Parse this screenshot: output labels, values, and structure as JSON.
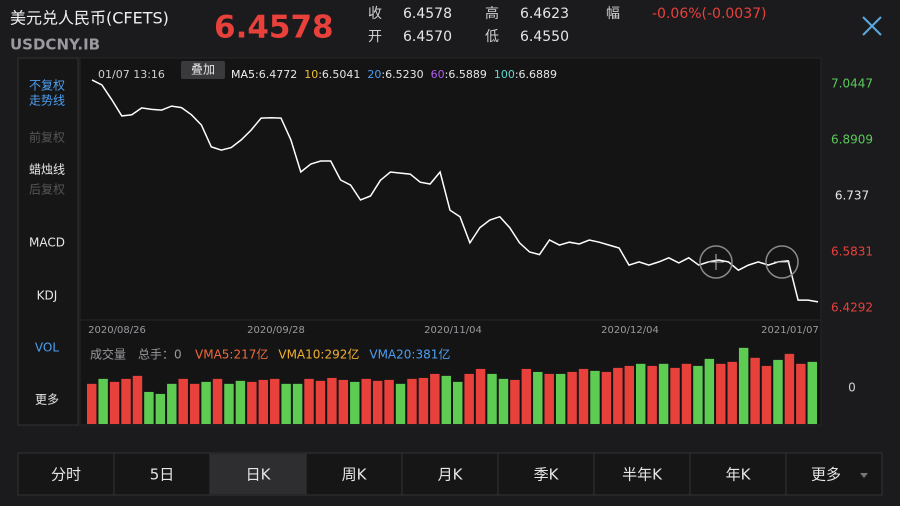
{
  "header": {
    "name": "美元兑人民币(CFETS)",
    "code": "USDCNY.IB",
    "price": "6.4578",
    "stats": [
      {
        "label": "收",
        "value": "6.4578"
      },
      {
        "label": "开",
        "value": "6.4570"
      },
      {
        "label": "高",
        "value": "6.4623"
      },
      {
        "label": "低",
        "value": "6.4550"
      },
      {
        "label": "幅",
        "value": "-0.06%(-0.0037)"
      }
    ]
  },
  "sidebar": [
    "不复权",
    "走势线",
    "前复权",
    "蜡烛线",
    "后复权",
    "MACD",
    "KDJ",
    "VOL",
    "更多"
  ],
  "price_chart": {
    "type": "line",
    "cursor_date": "01/07 13:16",
    "overlay_button": "叠加",
    "ma_legend": [
      {
        "name": "MA5",
        "value": ":6.4772",
        "color": "#f2f2f2"
      },
      {
        "name": "10",
        "value": ":6.5041",
        "color": "#f0c030"
      },
      {
        "name": "20",
        "value": ":6.5230",
        "color": "#4d9ef0"
      },
      {
        "name": "60",
        "value": ":6.5889",
        "color": "#b45cf0"
      },
      {
        "name": "100",
        "value": ":6.6889",
        "color": "#5fd8d0"
      }
    ],
    "color": "#ffffff",
    "values": [
      7.056,
      7.042,
      7.001,
      6.957,
      6.96,
      6.979,
      6.975,
      6.973,
      6.984,
      6.98,
      6.96,
      6.932,
      6.872,
      6.863,
      6.87,
      6.891,
      6.918,
      6.951,
      6.952,
      6.951,
      6.891,
      6.803,
      6.825,
      6.833,
      6.833,
      6.781,
      6.767,
      6.726,
      6.737,
      6.78,
      6.803,
      6.8,
      6.797,
      6.775,
      6.77,
      6.803,
      6.698,
      6.68,
      6.608,
      6.65,
      6.671,
      6.68,
      6.65,
      6.608,
      6.583,
      6.576,
      6.616,
      6.602,
      6.61,
      6.605,
      6.616,
      6.61,
      6.602,
      6.594,
      6.547,
      6.556,
      6.547,
      6.556,
      6.567,
      6.553,
      6.567,
      6.547,
      6.556,
      6.561,
      6.556,
      6.533,
      6.547,
      6.556,
      6.547,
      6.556,
      6.559,
      6.451,
      6.451,
      6.446
    ],
    "ylim": [
      6.4017,
      7.0887
    ],
    "yticks": [
      7.0447,
      6.8909,
      6.737,
      6.5831,
      6.4292
    ],
    "ytick_colors": [
      "#5cc85a",
      "#5cc85a",
      "#e6e6e6",
      "#e8413c",
      "#e8413c"
    ],
    "x_labels": [
      "2020/08/26",
      "2020/09/28",
      "2020/11/04",
      "2020/12/04",
      "2021/01/07"
    ]
  },
  "volume_chart": {
    "type": "bar",
    "label": "成交量",
    "total": "总手：0",
    "legend": [
      {
        "text": "VMA5:217亿",
        "color": "#ee6a3c"
      },
      {
        "text": "VMA10:292亿",
        "color": "#f0b030"
      },
      {
        "text": "VMA20:381亿",
        "color": "#4d9ef0"
      }
    ],
    "axis_label": "0",
    "ylim": [
      0,
      700
    ],
    "values": [
      347,
      390,
      364,
      390,
      416,
      277,
      260,
      347,
      390,
      347,
      364,
      390,
      347,
      373,
      364,
      381,
      390,
      347,
      347,
      390,
      373,
      398,
      381,
      364,
      390,
      373,
      381,
      347,
      390,
      398,
      433,
      416,
      364,
      433,
      476,
      433,
      390,
      381,
      476,
      450,
      433,
      433,
      450,
      476,
      459,
      450,
      485,
      502,
      520,
      502,
      520,
      485,
      520,
      502,
      563,
      520,
      537,
      658,
      572,
      502,
      554,
      606,
      520,
      537
    ],
    "colors": [
      "#e8413c",
      "#5ecb52",
      "#e8413c",
      "#e8413c",
      "#e8413c",
      "#5ecb52",
      "#5ecb52",
      "#5ecb52",
      "#e8413c",
      "#e8413c",
      "#5ecb52",
      "#e8413c",
      "#5ecb52",
      "#5ecb52",
      "#e8413c",
      "#e8413c",
      "#e8413c",
      "#5ecb52",
      "#5ecb52",
      "#e8413c",
      "#e8413c",
      "#e8413c",
      "#e8413c",
      "#5ecb52",
      "#e8413c",
      "#e8413c",
      "#e8413c",
      "#5ecb52",
      "#e8413c",
      "#e8413c",
      "#e8413c",
      "#5ecb52",
      "#5ecb52",
      "#e8413c",
      "#e8413c",
      "#5ecb52",
      "#5ecb52",
      "#e8413c",
      "#e8413c",
      "#5ecb52",
      "#e8413c",
      "#5ecb52",
      "#e8413c",
      "#e8413c",
      "#5ecb52",
      "#e8413c",
      "#e8413c",
      "#e8413c",
      "#5ecb52",
      "#e8413c",
      "#5ecb52",
      "#e8413c",
      "#e8413c",
      "#5ecb52",
      "#5ecb52",
      "#e8413c",
      "#e8413c",
      "#5ecb52",
      "#e8413c",
      "#e8413c",
      "#5ecb52",
      "#e8413c",
      "#e8413c",
      "#5ecb52"
    ]
  },
  "tabs": [
    "分时",
    "5日",
    "日K",
    "周K",
    "月K",
    "季K",
    "半年K",
    "年K",
    "更多"
  ],
  "selected_tab": 2
}
